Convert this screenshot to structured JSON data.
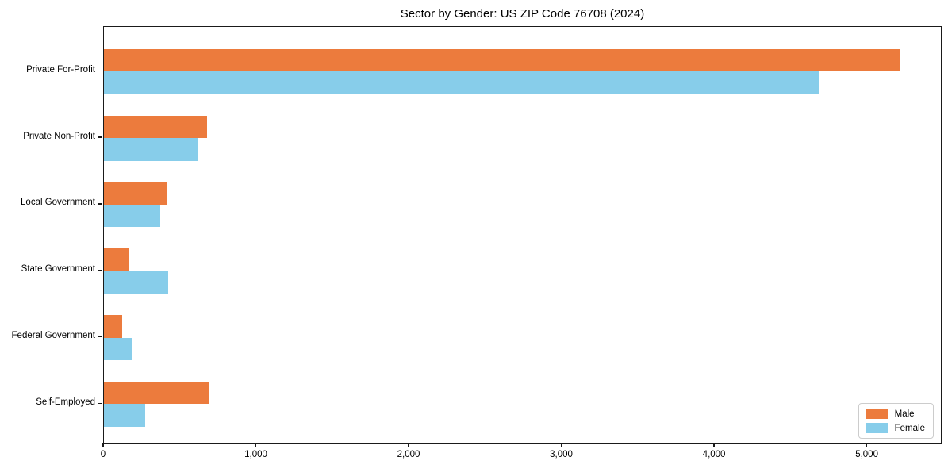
{
  "chart_data": {
    "type": "bar",
    "orientation": "horizontal",
    "title": "Sector by Gender: US ZIP Code 76708 (2024)",
    "categories": [
      "Private For-Profit",
      "Private Non-Profit",
      "Local Government",
      "State Government",
      "Federal Government",
      "Self-Employed"
    ],
    "series": [
      {
        "name": "Male",
        "color": "#ec7b3d",
        "values": [
          5210,
          675,
          410,
          160,
          120,
          690
        ]
      },
      {
        "name": "Female",
        "color": "#87cdea",
        "values": [
          4680,
          620,
          370,
          420,
          180,
          270
        ]
      }
    ],
    "xlabel": "",
    "ylabel": "",
    "xlim": [
      0,
      5480
    ],
    "x_ticks": [
      0,
      1000,
      2000,
      3000,
      4000,
      5000
    ],
    "x_tick_labels": [
      "0",
      "1,000",
      "2,000",
      "3,000",
      "4,000",
      "5,000"
    ],
    "grid": false,
    "legend_position": "lower right",
    "background_color": "#ffffff",
    "spine_color": "#1a1a1a"
  }
}
